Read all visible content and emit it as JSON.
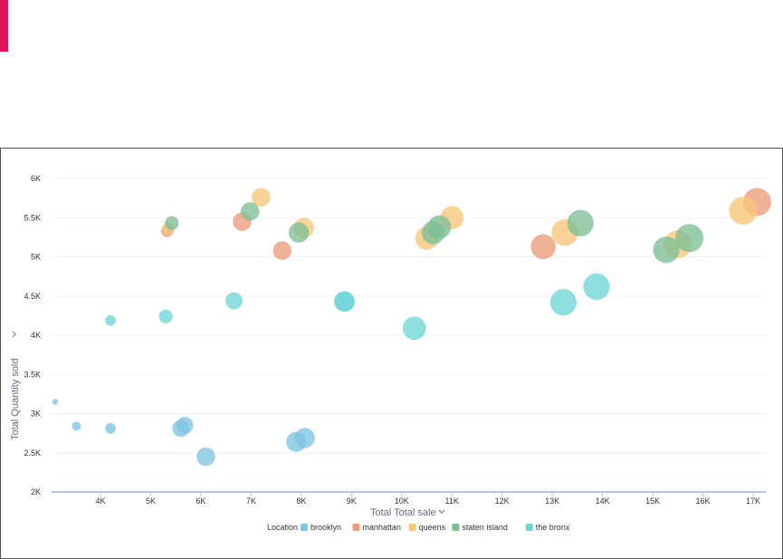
{
  "chart_data": {
    "type": "scatter",
    "xlabel": "Total Total sale",
    "ylabel": "Total Quantity sold",
    "xlim": [
      3000,
      17200
    ],
    "ylim": [
      2000,
      6000
    ],
    "x_ticks": [
      "4K",
      "5K",
      "6K",
      "7K",
      "8K",
      "9K",
      "10K",
      "11K",
      "12K",
      "13K",
      "14K",
      "15K",
      "16K",
      "17K"
    ],
    "y_ticks": [
      "2K",
      "2.5K",
      "3K",
      "3.5K",
      "4K",
      "4.5K",
      "5K",
      "5.5K",
      "6K"
    ],
    "grid": true,
    "legend": {
      "title": "Location",
      "placement": "bottom-center"
    },
    "series": [
      {
        "name": "brooklyn",
        "color": "#7fc4e3",
        "points": [
          {
            "x": 3100,
            "y": 3150,
            "size": 1
          },
          {
            "x": 3520,
            "y": 2840,
            "size": 2
          },
          {
            "x": 4200,
            "y": 2810,
            "size": 2.5
          },
          {
            "x": 5600,
            "y": 2810,
            "size": 4.5
          },
          {
            "x": 5680,
            "y": 2850,
            "size": 4.5
          },
          {
            "x": 6100,
            "y": 2450,
            "size": 5
          },
          {
            "x": 7900,
            "y": 2640,
            "size": 5.5
          },
          {
            "x": 8070,
            "y": 2690,
            "size": 5.5
          }
        ]
      },
      {
        "name": "manhattan",
        "color": "#ec9b7a",
        "points": [
          {
            "x": 5330,
            "y": 5330,
            "size": 3
          },
          {
            "x": 6820,
            "y": 5450,
            "size": 5
          },
          {
            "x": 7620,
            "y": 5080,
            "size": 5
          },
          {
            "x": 12820,
            "y": 5130,
            "size": 7
          },
          {
            "x": 17080,
            "y": 5700,
            "size": 8
          }
        ]
      },
      {
        "name": "queens",
        "color": "#f7c778",
        "points": [
          {
            "x": 5350,
            "y": 5360,
            "size": 3
          },
          {
            "x": 7200,
            "y": 5760,
            "size": 5
          },
          {
            "x": 8050,
            "y": 5370,
            "size": 5.5
          },
          {
            "x": 10500,
            "y": 5240,
            "size": 6.5
          },
          {
            "x": 11000,
            "y": 5500,
            "size": 6.5
          },
          {
            "x": 13250,
            "y": 5310,
            "size": 7.5
          },
          {
            "x": 15500,
            "y": 5160,
            "size": 8
          },
          {
            "x": 16800,
            "y": 5590,
            "size": 8
          }
        ]
      },
      {
        "name": "staten island",
        "color": "#7cbf94",
        "points": [
          {
            "x": 5420,
            "y": 5430,
            "size": 3.5
          },
          {
            "x": 6980,
            "y": 5580,
            "size": 5
          },
          {
            "x": 7950,
            "y": 5310,
            "size": 5.5
          },
          {
            "x": 10630,
            "y": 5310,
            "size": 6.5
          },
          {
            "x": 10750,
            "y": 5380,
            "size": 6.5
          },
          {
            "x": 13560,
            "y": 5430,
            "size": 7.5
          },
          {
            "x": 15270,
            "y": 5090,
            "size": 7.5
          },
          {
            "x": 15730,
            "y": 5240,
            "size": 8
          }
        ]
      },
      {
        "name": "the bronx",
        "color": "#6fd6d8",
        "points": [
          {
            "x": 4200,
            "y": 4190,
            "size": 2.5
          },
          {
            "x": 5300,
            "y": 4240,
            "size": 3.5
          },
          {
            "x": 6660,
            "y": 4440,
            "size": 4.5
          },
          {
            "x": 8850,
            "y": 4430,
            "size": 5.5
          },
          {
            "x": 8870,
            "y": 4430,
            "size": 5.5
          },
          {
            "x": 10250,
            "y": 4090,
            "size": 6.5
          },
          {
            "x": 13220,
            "y": 4420,
            "size": 7.5
          },
          {
            "x": 13880,
            "y": 4620,
            "size": 7.5
          }
        ]
      }
    ]
  }
}
